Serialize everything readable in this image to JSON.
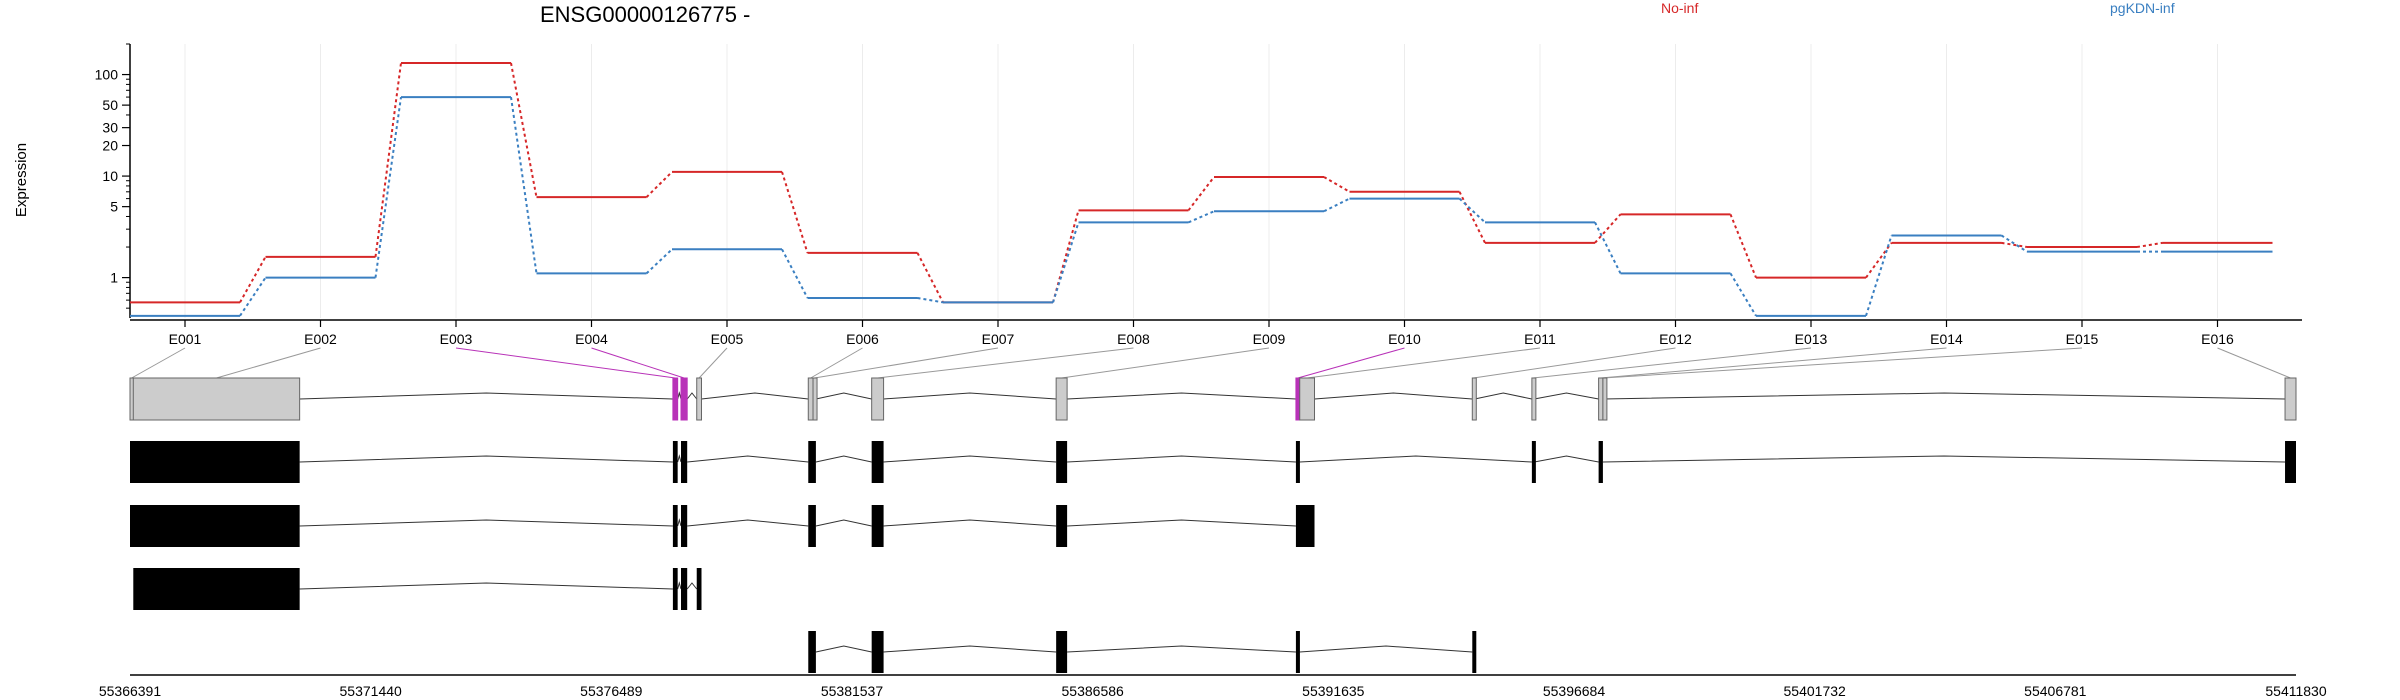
{
  "chart_data": {
    "type": "line",
    "title": "ENSG00000126775 -",
    "ylabel": "Expression",
    "yscale": "log",
    "ylim": [
      0.4,
      200
    ],
    "ytick_labels": [
      "1",
      "5",
      "10",
      "20",
      "30",
      "50",
      "100"
    ],
    "yticks": [
      1,
      5,
      10,
      20,
      30,
      50,
      100
    ],
    "grid": true,
    "legend_placement": "top-right",
    "categories": [
      "E001",
      "E002",
      "E003",
      "E004",
      "E005",
      "E006",
      "E007",
      "E008",
      "E009",
      "E010",
      "E011",
      "E012",
      "E013",
      "E014",
      "E015",
      "E016"
    ],
    "series": [
      {
        "name": "No-inf",
        "color": "#d62728",
        "values": [
          0.57,
          1.6,
          130,
          6.2,
          11,
          1.75,
          0.57,
          4.6,
          9.8,
          7.0,
          2.2,
          4.2,
          1.0,
          2.2,
          2.0,
          2.2
        ]
      },
      {
        "name": "pgKDN-inf",
        "color": "#3a7fc1",
        "values": [
          0.42,
          1.0,
          60,
          1.1,
          1.9,
          0.63,
          0.57,
          3.5,
          4.5,
          6.0,
          3.5,
          1.1,
          0.42,
          2.6,
          1.8,
          1.8
        ]
      }
    ],
    "genomic_axis": {
      "range": [
        55366391,
        55411830
      ],
      "tick_labels": [
        "55366391",
        "55371440",
        "55376489",
        "55381537",
        "55386586",
        "55391635",
        "55396684",
        "55401732",
        "55406781",
        "55411830"
      ]
    },
    "gene_model": {
      "highlight_color": "#b832b8",
      "exon_fill": "#cccccc",
      "transcript_fill": "#000000",
      "exons": [
        {
          "id": "E001",
          "start": 55366391,
          "end": 55366460
        },
        {
          "id": "E002",
          "start": 55366460,
          "end": 55369950
        },
        {
          "id": "E003",
          "start": 55377780,
          "end": 55377880,
          "highlight": true
        },
        {
          "id": "E004",
          "start": 55377950,
          "end": 55378080,
          "highlight": true
        },
        {
          "id": "E005",
          "start": 55378280,
          "end": 55378380
        },
        {
          "id": "E006",
          "start": 55380620,
          "end": 55380720
        },
        {
          "id": "E007",
          "start": 55380720,
          "end": 55380780
        },
        {
          "id": "E008",
          "start": 55381950,
          "end": 55382200
        },
        {
          "id": "E009",
          "start": 55385820,
          "end": 55386050
        },
        {
          "id": "E010",
          "start": 55390850,
          "end": 55390930,
          "highlight": true
        },
        {
          "id": "E011",
          "start": 55390930,
          "end": 55391240
        },
        {
          "id": "E012",
          "start": 55394550,
          "end": 55394600
        },
        {
          "id": "E013",
          "start": 55395800,
          "end": 55395850
        },
        {
          "id": "E014",
          "start": 55397200,
          "end": 55397290
        },
        {
          "id": "E015",
          "start": 55397290,
          "end": 55397300
        },
        {
          "id": "E016",
          "start": 55411600,
          "end": 55411830
        }
      ],
      "transcripts": [
        {
          "exons": [
            [
              55366391,
              55369950
            ],
            [
              55377780,
              55377880
            ],
            [
              55377950,
              55378080
            ],
            [
              55380620,
              55380780
            ],
            [
              55381950,
              55382200
            ],
            [
              55385820,
              55386050
            ],
            [
              55390850,
              55390930
            ],
            [
              55395800,
              55395850
            ],
            [
              55397200,
              55397290
            ],
            [
              55411600,
              55411830
            ]
          ]
        },
        {
          "exons": [
            [
              55366391,
              55369950
            ],
            [
              55377780,
              55377880
            ],
            [
              55377950,
              55378080
            ],
            [
              55380620,
              55380780
            ],
            [
              55381950,
              55382200
            ],
            [
              55385820,
              55386050
            ],
            [
              55390850,
              55391240
            ]
          ]
        },
        {
          "exons": [
            [
              55366460,
              55369950
            ],
            [
              55377780,
              55377880
            ],
            [
              55377950,
              55378080
            ],
            [
              55378280,
              55378380
            ]
          ]
        },
        {
          "exons": [
            [
              55380620,
              55380780
            ],
            [
              55381950,
              55382200
            ],
            [
              55385820,
              55386050
            ],
            [
              55390850,
              55390930
            ],
            [
              55394550,
              55394580
            ]
          ]
        }
      ]
    }
  }
}
